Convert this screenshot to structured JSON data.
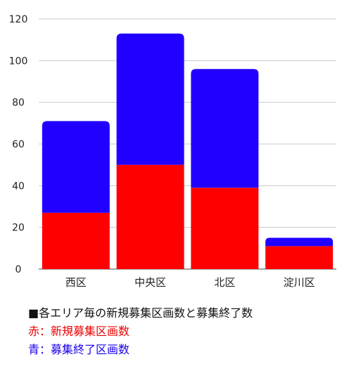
{
  "chart_data": {
    "type": "bar",
    "stacked": true,
    "categories": [
      "西区",
      "中央区",
      "北区",
      "淀川区"
    ],
    "series": [
      {
        "name": "新規募集区画数",
        "color": "#ff0000",
        "values": [
          27,
          50,
          39,
          11
        ]
      },
      {
        "name": "募集終了区画数",
        "color": "#2200ff",
        "values": [
          44,
          63,
          57,
          4
        ]
      }
    ],
    "ylim": [
      0,
      120
    ],
    "yticks": [
      0,
      20,
      40,
      60,
      80,
      100,
      120
    ],
    "grid": true,
    "legend": "bottom"
  },
  "notes": {
    "title": "■各エリア毎の新規募集区画数と募集終了数",
    "red": "赤：新規募集区画数",
    "blue": "青：募集終了区画数"
  }
}
